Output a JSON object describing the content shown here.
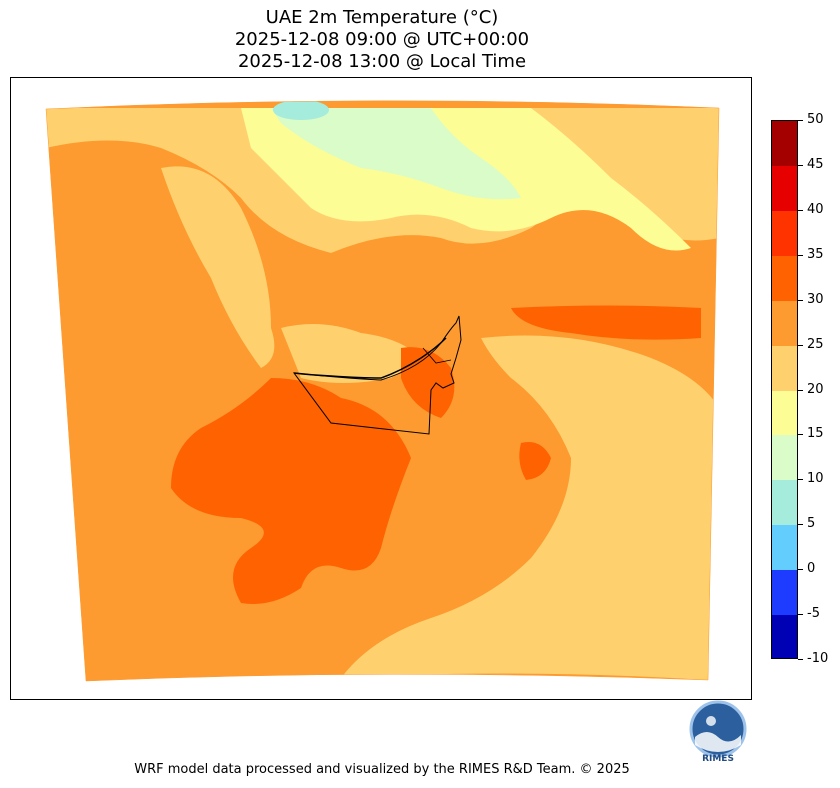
{
  "title": {
    "line1": "UAE 2m Temperature (°C)",
    "line2": "2025-12-08 09:00 @ UTC+00:00",
    "line3": "2025-12-08 13:00 @ Local Time"
  },
  "colorbar": {
    "levels": [
      {
        "label": "50",
        "color": "#a50000"
      },
      {
        "label": "45",
        "color": "#e60000"
      },
      {
        "label": "40",
        "color": "#ff3300"
      },
      {
        "label": "35",
        "color": "#ff6200"
      },
      {
        "label": "30",
        "color": "#fd9a30"
      },
      {
        "label": "25",
        "color": "#fed16e"
      },
      {
        "label": "20",
        "color": "#fdfd96"
      },
      {
        "label": "15",
        "color": "#d9fcc8"
      },
      {
        "label": "10",
        "color": "#a5ecdd"
      },
      {
        "label": "5",
        "color": "#63cefe"
      },
      {
        "label": "0",
        "color": "#1e3cff"
      },
      {
        "label": "-5",
        "color": "#0000b4"
      },
      {
        "label": "-10",
        "color": ""
      }
    ]
  },
  "logo": {
    "text": "RIMES"
  },
  "footer": {
    "credit": "WRF model data processed and visualized by the RIMES R&D Team. © 2025"
  }
}
